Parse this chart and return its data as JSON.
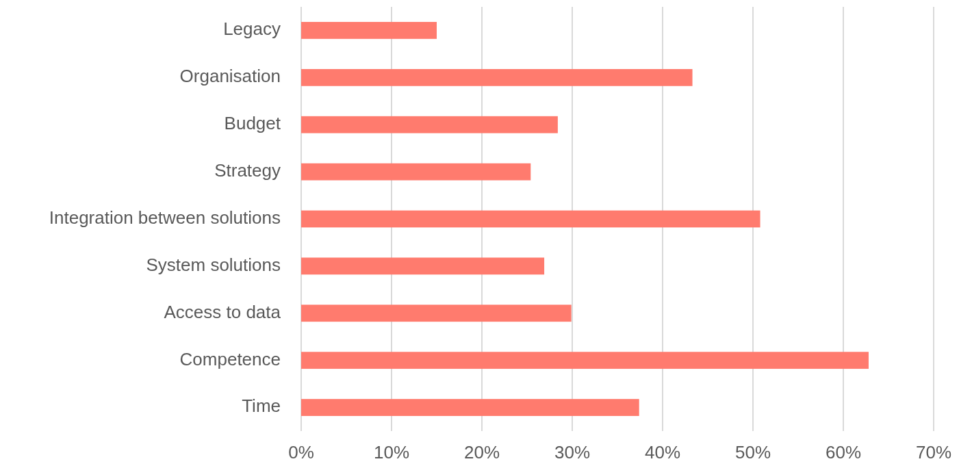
{
  "chart_data": {
    "type": "bar",
    "orientation": "horizontal",
    "categories": [
      "Legacy",
      "Organisation",
      "Budget",
      "Strategy",
      "Integration between solutions",
      "System solutions",
      "Access to data",
      "Competence",
      "Time"
    ],
    "values": [
      15,
      43.3,
      28.4,
      25.4,
      50.8,
      26.9,
      29.9,
      62.8,
      37.4
    ],
    "color": "#ff7b6e",
    "xlim": [
      0,
      70
    ],
    "xticks": [
      {
        "value": 0,
        "label": "0%"
      },
      {
        "value": 10,
        "label": "10%"
      },
      {
        "value": 20,
        "label": "20%"
      },
      {
        "value": 30,
        "label": "30%"
      },
      {
        "value": 40,
        "label": "40%"
      },
      {
        "value": 50,
        "label": "50%"
      },
      {
        "value": 60,
        "label": "60%"
      },
      {
        "value": 70,
        "label": "70%"
      }
    ],
    "grid": "x"
  }
}
